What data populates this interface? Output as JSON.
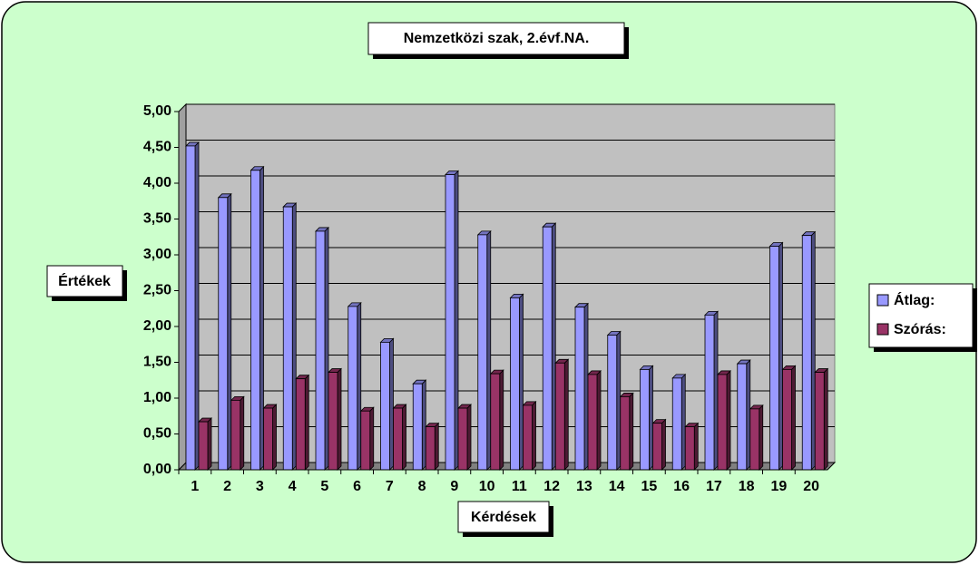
{
  "chart_data": {
    "type": "bar",
    "title": "Nemzetközi szak, 2.évf.NA.",
    "x_label": "Kérdések",
    "y_label": "Értékek",
    "categories": [
      "1",
      "2",
      "3",
      "4",
      "5",
      "6",
      "7",
      "8",
      "9",
      "10",
      "11",
      "12",
      "13",
      "14",
      "15",
      "16",
      "17",
      "18",
      "19",
      "20"
    ],
    "series": [
      {
        "name": "Átlag:",
        "color": "#9999ff",
        "values": [
          4.52,
          3.8,
          4.18,
          3.67,
          3.33,
          2.28,
          1.78,
          1.2,
          4.12,
          3.28,
          2.4,
          3.39,
          2.27,
          1.88,
          1.4,
          1.28,
          2.16,
          1.48,
          3.12,
          3.27
        ]
      },
      {
        "name": "Szórás:",
        "color": "#993366",
        "values": [
          0.67,
          0.97,
          0.86,
          1.27,
          1.36,
          0.82,
          0.86,
          0.6,
          0.86,
          1.34,
          0.9,
          1.49,
          1.33,
          1.02,
          0.65,
          0.6,
          1.33,
          0.85,
          1.4,
          1.36
        ]
      }
    ],
    "ylim": [
      0,
      5
    ],
    "yticks": [
      {
        "value": 0,
        "label": "0,00"
      },
      {
        "value": 0.5,
        "label": "0,50"
      },
      {
        "value": 1,
        "label": "1,00"
      },
      {
        "value": 1.5,
        "label": "1,50"
      },
      {
        "value": 2,
        "label": "2,00"
      },
      {
        "value": 2.5,
        "label": "2,50"
      },
      {
        "value": 3,
        "label": "3,00"
      },
      {
        "value": 3.5,
        "label": "3,50"
      },
      {
        "value": 4,
        "label": "4,00"
      },
      {
        "value": 4.5,
        "label": "4,50"
      },
      {
        "value": 5,
        "label": "5,00"
      }
    ],
    "grid": true,
    "legend": "right"
  }
}
